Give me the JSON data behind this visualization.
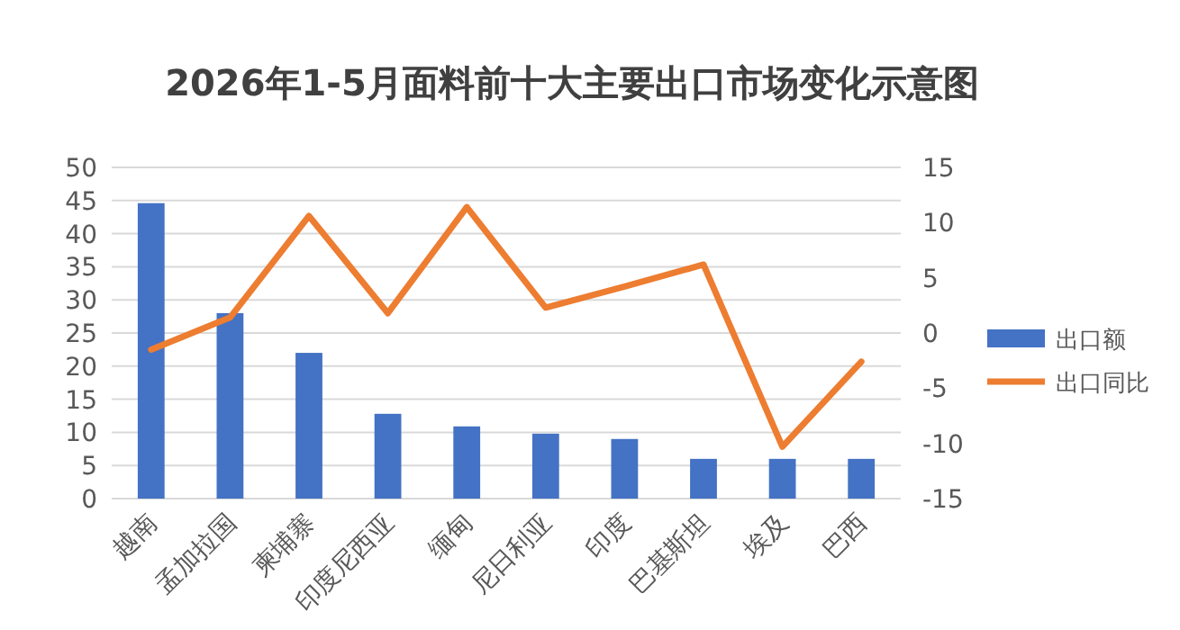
{
  "chart_data": {
    "type": "bar",
    "title": "2026年1-5月面料前十大主要出口市场变化示意图",
    "categories": [
      "越南",
      "孟加拉国",
      "柬埔寨",
      "印度尼西亚",
      "缅甸",
      "尼日利亚",
      "印度",
      "巴基斯坦",
      "埃及",
      "巴西"
    ],
    "series": [
      {
        "name": "出口额",
        "color": "#4472c4",
        "values": [
          44.6,
          28,
          22,
          12.8,
          10.9,
          9.8,
          9,
          6,
          6,
          6
        ]
      },
      {
        "name": "出口同比",
        "color": "#ed7d31",
        "type": "line",
        "axis": "y2",
        "values": [
          -1.5,
          1.4,
          10.6,
          1.8,
          11.4,
          2.3,
          4.2,
          6.2,
          -10.3,
          -2.6
        ]
      }
    ],
    "ylim": [
      0,
      50
    ],
    "yticks": [
      0,
      5,
      10,
      15,
      20,
      25,
      30,
      35,
      40,
      45,
      50
    ],
    "y2lim": [
      -15,
      15
    ],
    "y2ticks": [
      -15,
      -10,
      -5,
      0,
      5,
      10,
      15
    ],
    "grid": "y",
    "legend": "right"
  }
}
